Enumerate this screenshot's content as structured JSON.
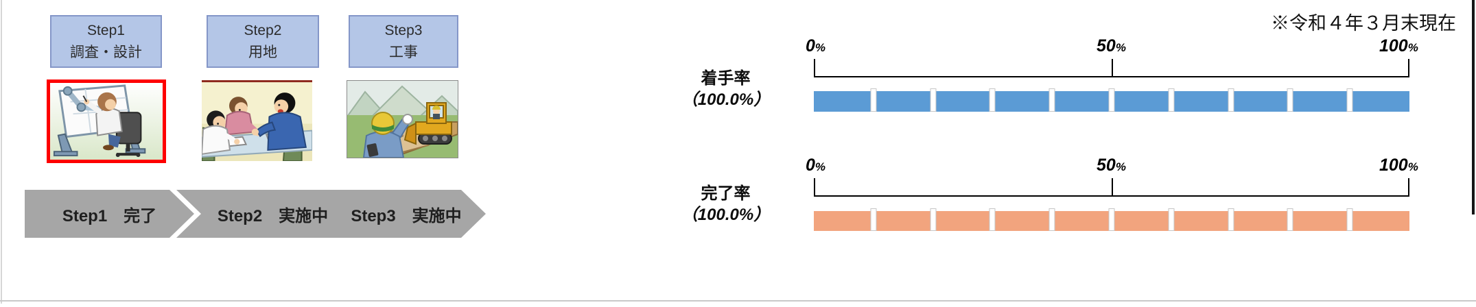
{
  "note": "※令和４年３月末現在",
  "steps": {
    "boxes": [
      {
        "title": "Step1",
        "subtitle": "調査・設計",
        "image": "drafting-illustration",
        "highlighted": true
      },
      {
        "title": "Step2",
        "subtitle": "用地",
        "image": "meeting-illustration",
        "highlighted": false
      },
      {
        "title": "Step3",
        "subtitle": "工事",
        "image": "construction-illustration",
        "highlighted": false
      }
    ]
  },
  "flow": {
    "items": [
      {
        "label": "Step1　完了"
      },
      {
        "label": "Step2　実施中"
      },
      {
        "label": "Step3　実施中"
      }
    ]
  },
  "colors": {
    "step_box_fill": "#b4c6e7",
    "step_box_border": "#8496c8",
    "chevron_gray": "#a6a6a6",
    "start_bar": "#5b9bd5",
    "complete_bar": "#f2a47e",
    "highlight_border": "#fe0000"
  },
  "chart_data": [
    {
      "type": "bar",
      "title": "着手率",
      "value": 100.0,
      "value_label": "（100.0%）",
      "unit": "%",
      "xlim": [
        0,
        100
      ],
      "segments": 10,
      "bar_color": "#5b9bd5",
      "ticks": [
        {
          "v": "0",
          "s": "%"
        },
        {
          "v": "50",
          "s": "%"
        },
        {
          "v": "100",
          "s": "%"
        }
      ]
    },
    {
      "type": "bar",
      "title": "完了率",
      "value": 100.0,
      "value_label": "（100.0%）",
      "unit": "%",
      "xlim": [
        0,
        100
      ],
      "segments": 10,
      "bar_color": "#f2a47e",
      "ticks": [
        {
          "v": "0",
          "s": "%"
        },
        {
          "v": "50",
          "s": "%"
        },
        {
          "v": "100",
          "s": "%"
        }
      ]
    }
  ]
}
